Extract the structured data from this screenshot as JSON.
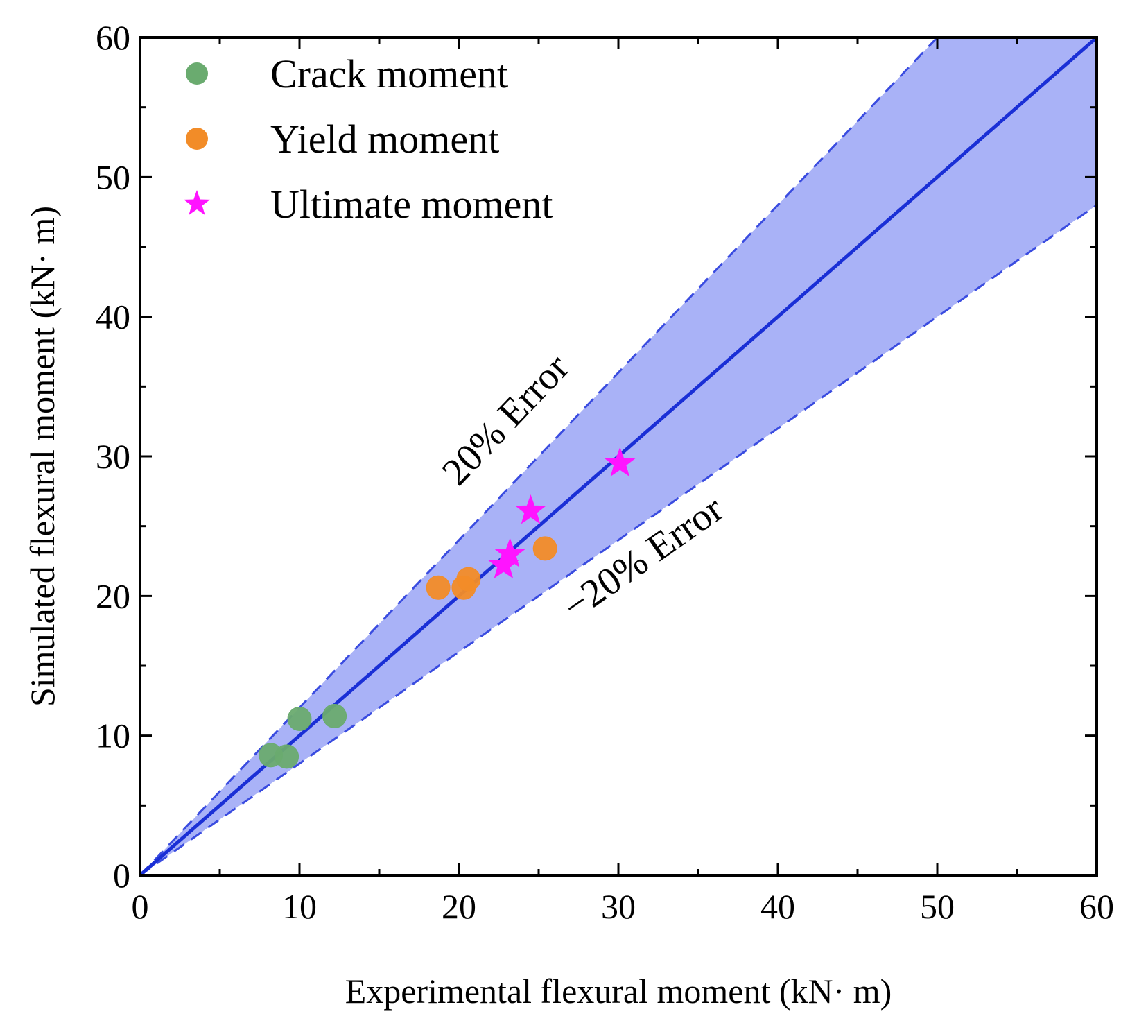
{
  "chart_data": {
    "type": "scatter",
    "title": "",
    "xlabel": "Experimental flexural moment  (kN· m)",
    "ylabel": "Simulated flexural moment (kN· m)",
    "xlim": [
      0,
      60
    ],
    "ylim": [
      0,
      60
    ],
    "x_ticks": [
      0,
      10,
      20,
      30,
      40,
      50,
      60
    ],
    "y_ticks": [
      0,
      10,
      20,
      30,
      40,
      50,
      60
    ],
    "x_tick_labels": [
      "0",
      "10",
      "20",
      "30",
      "40",
      "50",
      "60"
    ],
    "y_tick_labels": [
      "0",
      "10",
      "20",
      "30",
      "40",
      "50",
      "60"
    ],
    "grid": false,
    "legend_position": "top-left",
    "series": [
      {
        "name": "Crack moment",
        "marker": "circle",
        "color": "#6aab6f",
        "points": [
          [
            8.2,
            8.6
          ],
          [
            9.2,
            8.5
          ],
          [
            10.0,
            11.2
          ],
          [
            12.2,
            11.4
          ]
        ]
      },
      {
        "name": "Yield moment",
        "marker": "circle",
        "color": "#f28c28",
        "points": [
          [
            18.7,
            20.6
          ],
          [
            20.3,
            20.6
          ],
          [
            20.6,
            21.2
          ],
          [
            25.4,
            23.4
          ]
        ]
      },
      {
        "name": "Ultimate moment",
        "marker": "star",
        "color": "#ff14ff",
        "points": [
          [
            22.8,
            22.2
          ],
          [
            23.2,
            23.0
          ],
          [
            24.5,
            26.1
          ],
          [
            30.1,
            29.5
          ]
        ]
      }
    ],
    "reference_lines": [
      {
        "kind": "y=x",
        "slope": 1.0,
        "style": "solid",
        "color": "#1a2fd6"
      },
      {
        "kind": "upper bound",
        "slope": 1.2,
        "style": "dashed",
        "color": "#3a4ce0"
      },
      {
        "kind": "lower bound",
        "slope": 0.8,
        "style": "dashed",
        "color": "#3a4ce0"
      }
    ],
    "band_color": "#a9b2f7",
    "annotations": [
      {
        "text": "20% Error",
        "x": 23.5,
        "y": 32.0
      },
      {
        "text": "−20% Error",
        "x": 32.0,
        "y": 22.0
      }
    ]
  }
}
